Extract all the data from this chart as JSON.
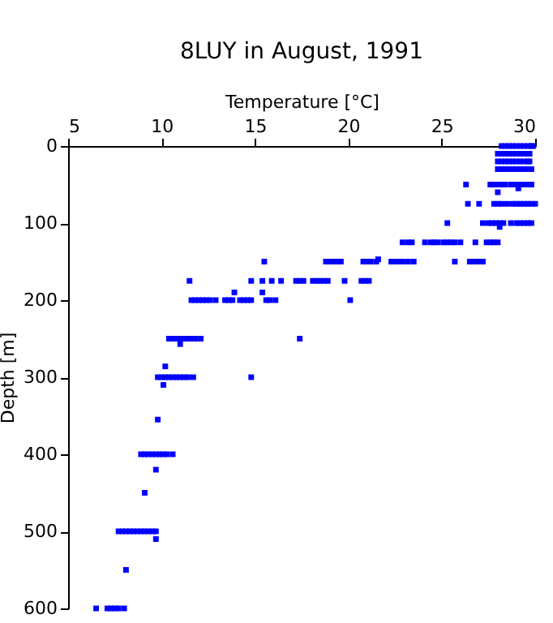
{
  "chart_data": {
    "type": "scatter",
    "title": "8LUY in August, 1991",
    "xlabel": "Temperature [°C]",
    "ylabel": "Depth [m]",
    "x": [
      28.2,
      28.4,
      28.6,
      28.8,
      29.0,
      29.2,
      29.4,
      29.6,
      29.8,
      29.9,
      28.0,
      28.2,
      28.4,
      28.6,
      28.8,
      29.0,
      29.2,
      29.4,
      29.6,
      29.7,
      28.0,
      28.2,
      28.4,
      28.6,
      28.8,
      29.0,
      29.2,
      29.4,
      29.6,
      29.7,
      28.0,
      28.2,
      28.4,
      28.6,
      28.8,
      29.0,
      29.2,
      29.5,
      29.8,
      26.3,
      27.6,
      27.8,
      28.0,
      28.2,
      28.4,
      28.7,
      28.9,
      29.1,
      29.3,
      29.5,
      29.8,
      29.1,
      28.0,
      26.4,
      27.0,
      27.8,
      28.0,
      28.2,
      28.5,
      28.8,
      29.0,
      29.2,
      29.4,
      29.6,
      29.8,
      30.0,
      25.3,
      27.2,
      27.5,
      27.7,
      27.9,
      28.1,
      28.3,
      28.7,
      29.0,
      29.2,
      29.4,
      29.6,
      29.8,
      28.1,
      22.9,
      23.2,
      23.4,
      24.1,
      24.4,
      24.6,
      24.8,
      25.1,
      25.3,
      25.5,
      25.7,
      26.0,
      26.8,
      27.4,
      27.6,
      27.8,
      28.0,
      15.5,
      18.8,
      19.0,
      19.2,
      19.4,
      19.6,
      20.8,
      21.0,
      21.2,
      21.5,
      22.3,
      22.6,
      22.9,
      23.2,
      23.5,
      25.7,
      26.5,
      26.7,
      26.9,
      27.2,
      21.6,
      11.5,
      14.8,
      15.4,
      15.9,
      16.4,
      17.2,
      17.4,
      17.6,
      18.1,
      18.3,
      18.5,
      18.7,
      18.9,
      19.8,
      20.7,
      20.9,
      21.1,
      13.9,
      15.4,
      11.6,
      11.8,
      12.0,
      12.2,
      12.4,
      12.6,
      12.9,
      13.4,
      13.6,
      13.8,
      14.2,
      14.4,
      14.6,
      14.8,
      15.6,
      15.8,
      16.1,
      20.1,
      10.4,
      10.6,
      10.8,
      11.0,
      11.2,
      11.4,
      11.6,
      11.8,
      12.1,
      17.4,
      11.0,
      10.2,
      9.8,
      10.0,
      10.2,
      10.4,
      10.6,
      10.8,
      11.0,
      11.2,
      11.4,
      11.7,
      14.8,
      10.1,
      9.8,
      8.9,
      9.1,
      9.3,
      9.5,
      9.7,
      9.9,
      10.1,
      10.3,
      10.6,
      9.7,
      9.1,
      7.7,
      7.9,
      8.1,
      8.3,
      8.5,
      8.7,
      8.9,
      9.1,
      9.3,
      9.5,
      9.7,
      9.7,
      8.1,
      6.5,
      7.1,
      7.3,
      7.5,
      7.7,
      8.0
    ],
    "values": [
      0,
      0,
      0,
      0,
      0,
      0,
      0,
      0,
      0,
      0,
      10,
      10,
      10,
      10,
      10,
      10,
      10,
      10,
      10,
      10,
      20,
      20,
      20,
      20,
      20,
      20,
      20,
      20,
      20,
      20,
      30,
      30,
      30,
      30,
      30,
      30,
      30,
      30,
      30,
      50,
      50,
      50,
      50,
      50,
      50,
      50,
      50,
      50,
      50,
      50,
      50,
      55,
      60,
      75,
      75,
      75,
      75,
      75,
      75,
      75,
      75,
      75,
      75,
      75,
      75,
      75,
      100,
      100,
      100,
      100,
      100,
      100,
      100,
      100,
      100,
      100,
      100,
      100,
      100,
      105,
      125,
      125,
      125,
      125,
      125,
      125,
      125,
      125,
      125,
      125,
      125,
      125,
      125,
      125,
      125,
      125,
      125,
      150,
      150,
      150,
      150,
      150,
      150,
      150,
      150,
      150,
      150,
      150,
      150,
      150,
      150,
      150,
      150,
      150,
      150,
      150,
      150,
      147,
      175,
      175,
      175,
      175,
      175,
      175,
      175,
      175,
      175,
      175,
      175,
      175,
      175,
      175,
      175,
      175,
      175,
      190,
      190,
      200,
      200,
      200,
      200,
      200,
      200,
      200,
      200,
      200,
      200,
      200,
      200,
      200,
      200,
      200,
      200,
      200,
      200,
      250,
      250,
      250,
      250,
      250,
      250,
      250,
      250,
      250,
      250,
      257,
      286,
      300,
      300,
      300,
      300,
      300,
      300,
      300,
      300,
      300,
      300,
      300,
      310,
      355,
      400,
      400,
      400,
      400,
      400,
      400,
      400,
      400,
      400,
      420,
      450,
      500,
      500,
      500,
      500,
      500,
      500,
      500,
      500,
      500,
      500,
      500,
      510,
      550,
      600,
      600,
      600,
      600,
      600,
      600
    ],
    "color": "#0000ff",
    "marker": "square",
    "grid": false,
    "xlim": [
      5,
      30
    ],
    "xticks": [
      5,
      10,
      15,
      20,
      25,
      30
    ],
    "ylim": [
      600,
      0
    ],
    "yticks": [
      0,
      100,
      200,
      300,
      400,
      500,
      600
    ]
  }
}
